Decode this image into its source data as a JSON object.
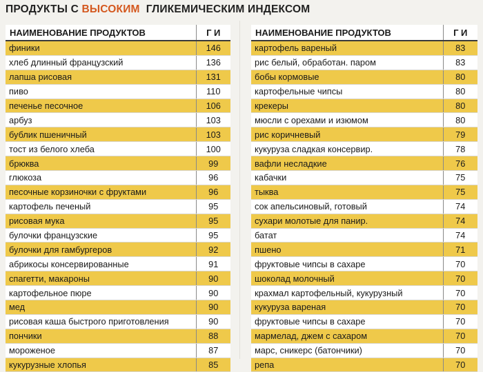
{
  "title": {
    "prefix": "ПРОДУКТЫ С",
    "highlight": "ВЫСОКИМ",
    "suffix": "ГЛИКЕМИЧЕСКИМ ИНДЕКСОМ"
  },
  "colors": {
    "highlight": "#d4581f",
    "row_band": "#efc94a",
    "row_plain": "#ffffff",
    "page_bg": "#f3f2ee"
  },
  "left_table": {
    "header_name": "НАИМЕНОВАНИЕ ПРОДУКТОВ",
    "header_gi": "Г И",
    "rows": [
      {
        "name": "финики",
        "gi": "146"
      },
      {
        "name": "хлеб длинный французский",
        "gi": "136"
      },
      {
        "name": "лапша рисовая",
        "gi": "131"
      },
      {
        "name": "пиво",
        "gi": "110"
      },
      {
        "name": "печенье песочное",
        "gi": "106"
      },
      {
        "name": "арбуз",
        "gi": "103"
      },
      {
        "name": "бублик пшеничный",
        "gi": "103"
      },
      {
        "name": "тост из белого хлеба",
        "gi": "100"
      },
      {
        "name": "брюква",
        "gi": "99"
      },
      {
        "name": "глюкоза",
        "gi": "96"
      },
      {
        "name": "песочные корзиночки с фруктами",
        "gi": "96"
      },
      {
        "name": "картофель печеный",
        "gi": "95"
      },
      {
        "name": "рисовая мука",
        "gi": "95"
      },
      {
        "name": "булочки французские",
        "gi": "95"
      },
      {
        "name": "булочки для гамбургеров",
        "gi": "92"
      },
      {
        "name": "абрикосы консервированные",
        "gi": "91"
      },
      {
        "name": "спагетти, макароны",
        "gi": "90"
      },
      {
        "name": "картофельное пюре",
        "gi": "90"
      },
      {
        "name": "мед",
        "gi": "90"
      },
      {
        "name": "рисовая каша быстрого приготовления",
        "gi": "90"
      },
      {
        "name": "пончики",
        "gi": "88"
      },
      {
        "name": "мороженое",
        "gi": "87"
      },
      {
        "name": "кукурузные хлопья",
        "gi": "85"
      }
    ]
  },
  "right_table": {
    "header_name": "НАИМЕНОВАНИЕ ПРОДУКТОВ",
    "header_gi": "Г И",
    "rows": [
      {
        "name": "картофель вареный",
        "gi": "83"
      },
      {
        "name": "рис белый, обработан. паром",
        "gi": "83"
      },
      {
        "name": "бобы кормовые",
        "gi": "80"
      },
      {
        "name": "картофельные чипсы",
        "gi": "80"
      },
      {
        "name": "крекеры",
        "gi": "80"
      },
      {
        "name": "мюсли с орехами и изюмом",
        "gi": "80"
      },
      {
        "name": "рис коричневый",
        "gi": "79"
      },
      {
        "name": "кукуруза сладкая консервир.",
        "gi": "78"
      },
      {
        "name": "вафли несладкие",
        "gi": "76"
      },
      {
        "name": "кабачки",
        "gi": "75"
      },
      {
        "name": "тыква",
        "gi": "75"
      },
      {
        "name": "сок апельсиновый, готовый",
        "gi": "74"
      },
      {
        "name": "сухари молотые для панир.",
        "gi": "74"
      },
      {
        "name": "батат",
        "gi": "74"
      },
      {
        "name": "пшено",
        "gi": "71"
      },
      {
        "name": "фруктовые чипсы в сахаре",
        "gi": "70"
      },
      {
        "name": "шоколад молочный",
        "gi": "70"
      },
      {
        "name": "крахмал картофельный, кукурузный",
        "gi": "70"
      },
      {
        "name": "кукуруза вареная",
        "gi": "70"
      },
      {
        "name": "фруктовые чипсы в сахаре",
        "gi": "70"
      },
      {
        "name": "мармелад, джем с сахаром",
        "gi": "70"
      },
      {
        "name": "марс, сникерс (батончики)",
        "gi": "70"
      },
      {
        "name": "репа",
        "gi": "70"
      }
    ]
  }
}
